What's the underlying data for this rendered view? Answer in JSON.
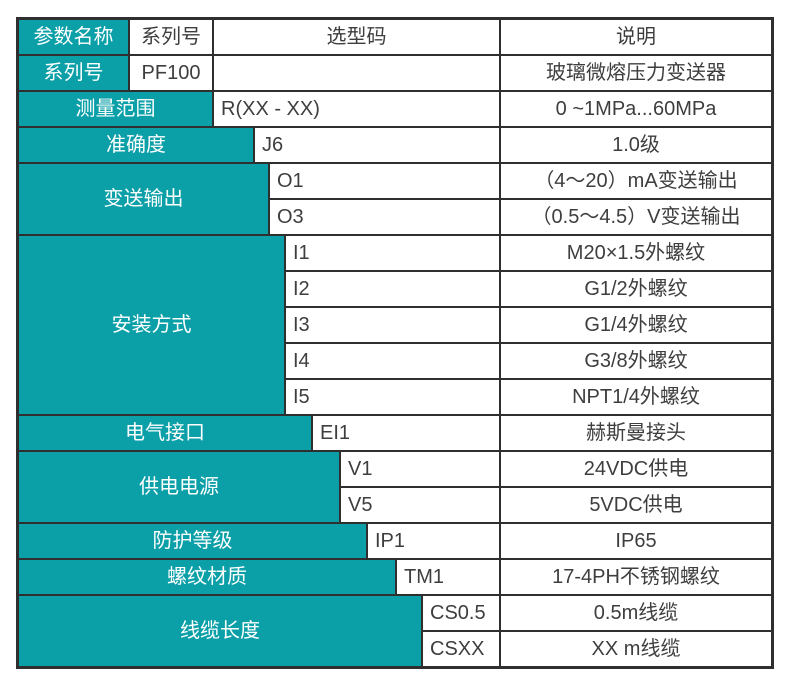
{
  "colors": {
    "accent": "#0b9fa8",
    "border": "#2f2f2f",
    "text": "#3e3e3e"
  },
  "header": {
    "param": "参数名称",
    "series": "系列号",
    "code": "选型码",
    "desc": "说明"
  },
  "groups": [
    {
      "param": "系列号",
      "rows": [
        {
          "code": "PF100",
          "desc": "玻璃微熔压力变送器"
        }
      ]
    },
    {
      "param": "测量范围",
      "rows": [
        {
          "code": "R(XX - XX)",
          "desc": "0 ~1MPa...60MPa"
        }
      ]
    },
    {
      "param": "准确度",
      "rows": [
        {
          "code": "J6",
          "desc": "1.0级"
        }
      ]
    },
    {
      "param": "变送输出",
      "rows": [
        {
          "code": "O1",
          "desc": "（4～20）mA变送输出"
        },
        {
          "code": "O3",
          "desc": "（0.5～4.5）V变送输出"
        }
      ]
    },
    {
      "param": "安装方式",
      "rows": [
        {
          "code": "I1",
          "desc": "M20×1.5外螺纹"
        },
        {
          "code": "I2",
          "desc": "G1/2外螺纹"
        },
        {
          "code": "I3",
          "desc": "G1/4外螺纹"
        },
        {
          "code": "I4",
          "desc": "G3/8外螺纹"
        },
        {
          "code": "I5",
          "desc": "NPT1/4外螺纹"
        }
      ]
    },
    {
      "param": "电气接口",
      "rows": [
        {
          "code": "EI1",
          "desc": "赫斯曼接头"
        }
      ]
    },
    {
      "param": "供电电源",
      "rows": [
        {
          "code": "V1",
          "desc": "24VDC供电"
        },
        {
          "code": "V5",
          "desc": "5VDC供电"
        }
      ]
    },
    {
      "param": "防护等级",
      "rows": [
        {
          "code": "IP1",
          "desc": "IP65"
        }
      ]
    },
    {
      "param": "螺纹材质",
      "rows": [
        {
          "code": "TM1",
          "desc": "17-4PH不锈钢螺纹"
        }
      ]
    },
    {
      "param": "线缆长度",
      "rows": [
        {
          "code": "CS0.5",
          "desc": "0.5m线缆"
        },
        {
          "code": "CSXX",
          "desc": "XX m线缆"
        }
      ]
    }
  ]
}
